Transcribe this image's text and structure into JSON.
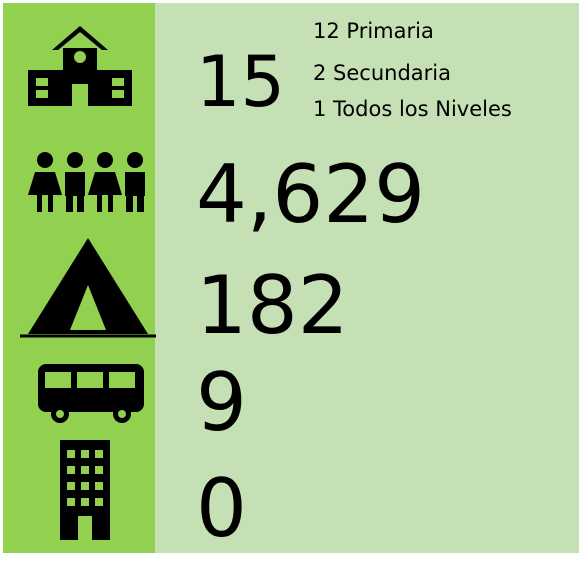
{
  "rows": [
    {
      "value": 15,
      "details": [
        "12 Primaria",
        "2 Secundaria",
        "1 Todos los  Niveles"
      ]
    },
    {
      "value": "4,629"
    },
    {
      "value": 182
    },
    {
      "value": 9
    },
    {
      "value": 0
    }
  ]
}
